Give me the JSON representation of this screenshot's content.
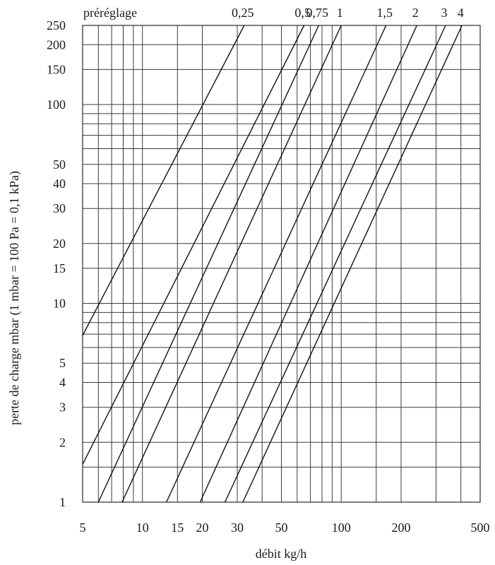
{
  "chart_data": {
    "type": "line",
    "title": "",
    "xlabel": "débit kg/h",
    "ylabel": "perte de charge mbar (1 mbar = 100 Pa = 0,1 kPa)",
    "x_scale": "log",
    "y_scale": "log",
    "xlim": [
      5,
      500
    ],
    "ylim": [
      1,
      250
    ],
    "grid": true,
    "x_ticks": [
      5,
      10,
      15,
      20,
      30,
      50,
      100,
      200,
      500
    ],
    "x_tick_labels": [
      "5",
      "10",
      "15",
      "20",
      "30",
      "50",
      "100",
      "200",
      "500"
    ],
    "y_ticks": [
      1,
      2,
      3,
      4,
      5,
      10,
      15,
      20,
      30,
      40,
      50,
      100,
      150,
      200,
      250
    ],
    "y_tick_labels": [
      "1",
      "2",
      "3",
      "4",
      "5",
      "10",
      "15",
      "20",
      "30",
      "40",
      "50",
      "100",
      "150",
      "200",
      "250"
    ],
    "x_minor_grid": [
      6,
      7,
      8,
      9,
      10,
      15,
      20,
      30,
      40,
      50,
      60,
      70,
      80,
      90,
      100,
      150,
      200,
      300,
      400
    ],
    "y_minor_grid": [
      1,
      1.5,
      2,
      3,
      4,
      5,
      6,
      7,
      8,
      9,
      10,
      15,
      20,
      30,
      40,
      50,
      60,
      70,
      80,
      90,
      100,
      150,
      200,
      250
    ],
    "legend_title": "préréglage",
    "series": [
      {
        "name": "0,25",
        "points": [
          [
            5,
            6.9
          ],
          [
            32.5,
            250
          ]
        ]
      },
      {
        "name": "0,5",
        "points": [
          [
            5,
            1.55
          ],
          [
            65,
            250
          ]
        ]
      },
      {
        "name": "0,75",
        "points": [
          [
            6,
            1
          ],
          [
            77,
            250
          ]
        ]
      },
      {
        "name": "1",
        "points": [
          [
            7.9,
            1
          ],
          [
            100,
            250
          ]
        ]
      },
      {
        "name": "1,5",
        "points": [
          [
            13.2,
            1
          ],
          [
            168,
            250
          ]
        ]
      },
      {
        "name": "2",
        "points": [
          [
            19.5,
            1
          ],
          [
            240,
            250
          ]
        ]
      },
      {
        "name": "3",
        "points": [
          [
            26,
            1
          ],
          [
            335,
            250
          ]
        ]
      },
      {
        "name": "4",
        "points": [
          [
            32,
            1
          ],
          [
            405,
            250
          ]
        ]
      }
    ]
  }
}
